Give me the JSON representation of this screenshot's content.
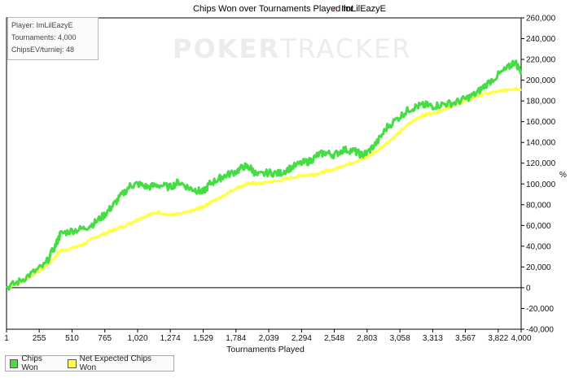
{
  "chart_data": {
    "type": "line",
    "title": "Chips Won over Tournaments Played for",
    "player_name": "ImLilEazyE",
    "xlabel": "Tournaments Played",
    "ylabel": "",
    "x_tick_labels": [
      "1",
      "255",
      "510",
      "765",
      "1,020",
      "1,274",
      "1,529",
      "1,784",
      "2,039",
      "2,294",
      "2,548",
      "2,803",
      "3,058",
      "3,313",
      "3,567",
      "3,822",
      "4,000"
    ],
    "x_tick_values": [
      1,
      255,
      510,
      765,
      1020,
      1274,
      1529,
      1784,
      2039,
      2294,
      2548,
      2803,
      3058,
      3313,
      3567,
      3822,
      4000
    ],
    "y_tick_labels": [
      "-40,000",
      "-20,000",
      "0",
      "20,000",
      "40,000",
      "60,000",
      "80,000",
      "100,000",
      "120,000",
      "140,000",
      "160,000",
      "180,000",
      "200,000",
      "220,000",
      "240,000",
      "260,000"
    ],
    "y_tick_values": [
      -40000,
      -20000,
      0,
      20000,
      40000,
      60000,
      80000,
      100000,
      120000,
      140000,
      160000,
      180000,
      200000,
      220000,
      240000,
      260000
    ],
    "y_unit": "%",
    "xlim": [
      1,
      4000
    ],
    "ylim": [
      -40000,
      260000
    ],
    "grid": false,
    "series": [
      {
        "name": "Chips Won",
        "color": "#44dd44",
        "x": [
          1,
          100,
          200,
          300,
          380,
          420,
          510,
          600,
          680,
          760,
          820,
          880,
          960,
          1020,
          1100,
          1180,
          1274,
          1340,
          1420,
          1480,
          1529,
          1580,
          1650,
          1700,
          1784,
          1850,
          1900,
          1950,
          2039,
          2120,
          2200,
          2294,
          2360,
          2420,
          2480,
          2548,
          2620,
          2700,
          2760,
          2803,
          2880,
          2960,
          3058,
          3130,
          3200,
          3260,
          3313,
          3400,
          3480,
          3567,
          3650,
          3720,
          3822,
          3900,
          3950,
          4000
        ],
        "values": [
          0,
          6000,
          14000,
          22000,
          40000,
          52000,
          55000,
          57000,
          62000,
          70000,
          78000,
          87000,
          98000,
          100000,
          97000,
          99000,
          97000,
          102000,
          96000,
          94000,
          92000,
          100000,
          105000,
          108000,
          112000,
          117000,
          115000,
          108000,
          111000,
          110000,
          115000,
          120000,
          122000,
          128000,
          130000,
          128000,
          133000,
          132000,
          128000,
          130000,
          140000,
          155000,
          165000,
          172000,
          175000,
          176000,
          175000,
          177000,
          178000,
          182000,
          187000,
          195000,
          205000,
          212000,
          218000,
          208000
        ]
      },
      {
        "name": "Net Expected Chips Won",
        "color": "#ffff44",
        "x": [
          1,
          100,
          200,
          300,
          380,
          420,
          510,
          600,
          680,
          760,
          820,
          880,
          960,
          1020,
          1100,
          1180,
          1274,
          1340,
          1420,
          1480,
          1529,
          1580,
          1650,
          1700,
          1784,
          1850,
          1900,
          1950,
          2039,
          2120,
          2200,
          2294,
          2360,
          2420,
          2480,
          2548,
          2620,
          2700,
          2760,
          2803,
          2880,
          2960,
          3058,
          3130,
          3200,
          3260,
          3313,
          3400,
          3480,
          3567,
          3650,
          3720,
          3822,
          3900,
          3950,
          4000
        ],
        "values": [
          0,
          5000,
          12000,
          20000,
          30000,
          36000,
          38000,
          42000,
          48000,
          52000,
          55000,
          58000,
          62000,
          66000,
          70000,
          73000,
          70000,
          71000,
          73000,
          76000,
          78000,
          82000,
          86000,
          90000,
          96000,
          99000,
          101000,
          100000,
          102000,
          103000,
          106000,
          108000,
          109000,
          110000,
          112000,
          114000,
          118000,
          121000,
          124000,
          126000,
          132000,
          140000,
          150000,
          158000,
          164000,
          167000,
          168000,
          172000,
          176000,
          180000,
          184000,
          187000,
          189000,
          191000,
          192000,
          191000
        ]
      }
    ]
  },
  "info_box": {
    "player_line": "Player: ImLilEazyE",
    "tournaments_line": "Tournaments: 4,000",
    "chipsev_line": "ChipsEV/turniej: 48"
  },
  "watermark": {
    "bold": "POKER",
    "light": "TRACKER"
  },
  "legend": {
    "chips_won": "Chips Won",
    "net_expected": "Net Expected Chips Won"
  },
  "colors": {
    "chips_won": "#44dd44",
    "net_expected": "#ffff44"
  }
}
